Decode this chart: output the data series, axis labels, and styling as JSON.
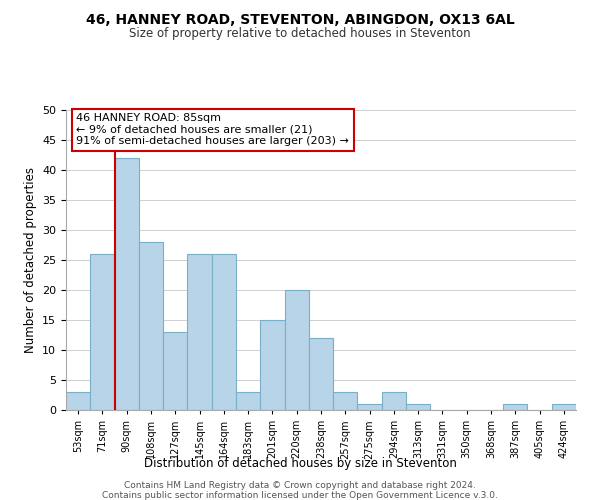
{
  "title1": "46, HANNEY ROAD, STEVENTON, ABINGDON, OX13 6AL",
  "title2": "Size of property relative to detached houses in Steventon",
  "xlabel": "Distribution of detached houses by size in Steventon",
  "ylabel": "Number of detached properties",
  "bin_labels": [
    "53sqm",
    "71sqm",
    "90sqm",
    "108sqm",
    "127sqm",
    "145sqm",
    "164sqm",
    "183sqm",
    "201sqm",
    "220sqm",
    "238sqm",
    "257sqm",
    "275sqm",
    "294sqm",
    "313sqm",
    "331sqm",
    "350sqm",
    "368sqm",
    "387sqm",
    "405sqm",
    "424sqm"
  ],
  "bar_heights": [
    3,
    26,
    42,
    28,
    13,
    26,
    26,
    3,
    15,
    20,
    12,
    3,
    1,
    3,
    1,
    0,
    0,
    0,
    1,
    0,
    1
  ],
  "bar_color": "#b8d4e8",
  "bar_edge_color": "#7aafc8",
  "ylim": [
    0,
    50
  ],
  "yticks": [
    0,
    5,
    10,
    15,
    20,
    25,
    30,
    35,
    40,
    45,
    50
  ],
  "property_line_color": "#cc0000",
  "property_line_xindex": 2,
  "annotation_title": "46 HANNEY ROAD: 85sqm",
  "annotation_line1": "← 9% of detached houses are smaller (21)",
  "annotation_line2": "91% of semi-detached houses are larger (203) →",
  "annotation_box_color": "#ffffff",
  "annotation_box_edge": "#cc0000",
  "footer1": "Contains HM Land Registry data © Crown copyright and database right 2024.",
  "footer2": "Contains public sector information licensed under the Open Government Licence v.3.0.",
  "background_color": "#ffffff",
  "grid_color": "#d0d0d0"
}
